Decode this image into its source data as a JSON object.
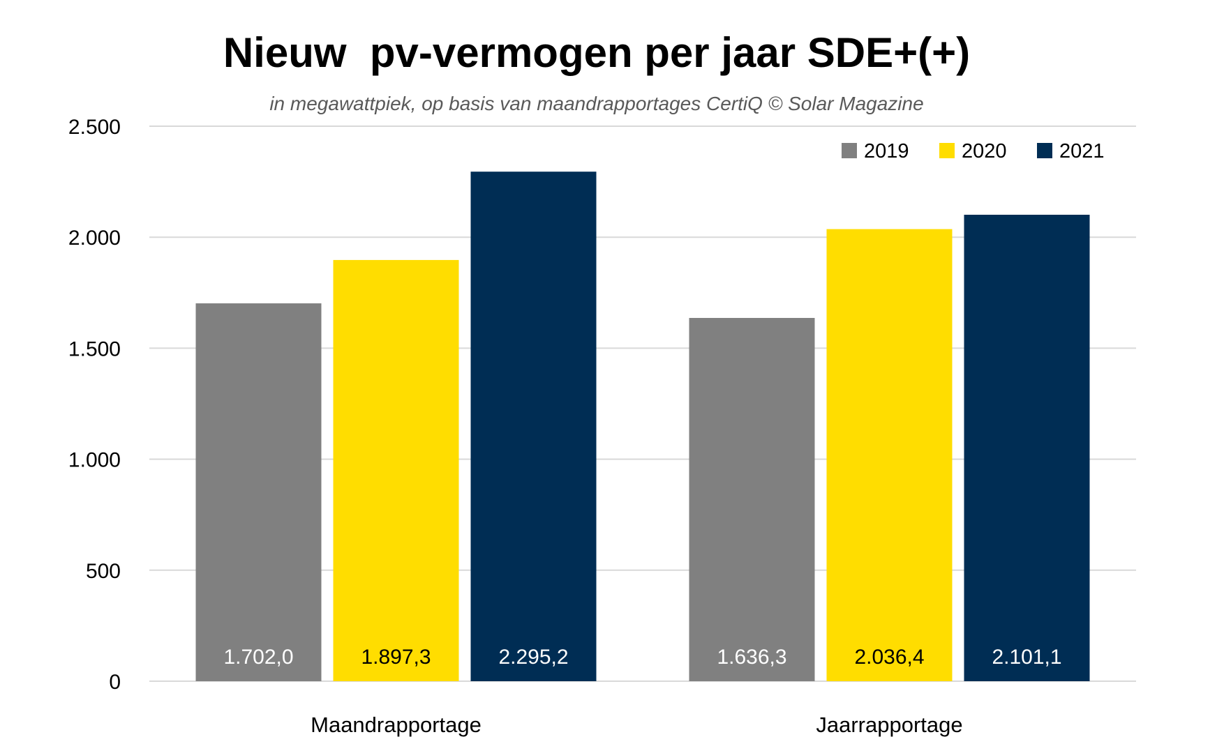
{
  "chart_data": {
    "type": "bar",
    "title": "Nieuw  pv-vermogen per jaar SDE+(+)",
    "subtitle": "in megawattpiek, op basis van maandrapportages CertiQ © Solar Magazine",
    "xlabel": "",
    "ylabel": "",
    "categories": [
      "Maandrapportage",
      "Jaarrapportage"
    ],
    "series": [
      {
        "name": "2019",
        "color": "#808080",
        "label_color": "#ffffff",
        "values": [
          1702.0,
          1636.3
        ],
        "labels": [
          "1.702,0",
          "1.636,3"
        ]
      },
      {
        "name": "2020",
        "color": "#ffdd00",
        "label_color": "#000000",
        "values": [
          1897.3,
          2036.4
        ],
        "labels": [
          "1.897,3",
          "2.036,4"
        ]
      },
      {
        "name": "2021",
        "color": "#002d54",
        "label_color": "#ffffff",
        "values": [
          2295.2,
          2101.1
        ],
        "labels": [
          "2.295,2",
          "2.101,1"
        ]
      }
    ],
    "ylim": [
      0,
      2500
    ],
    "yticks": [
      0,
      500,
      1000,
      1500,
      2000,
      2500
    ],
    "ytick_labels": [
      "0",
      "500",
      "1.000",
      "1.500",
      "2.000",
      "2.500"
    ],
    "grid": true,
    "legend_position": "top-right",
    "data_labels_position": "inside-base"
  }
}
